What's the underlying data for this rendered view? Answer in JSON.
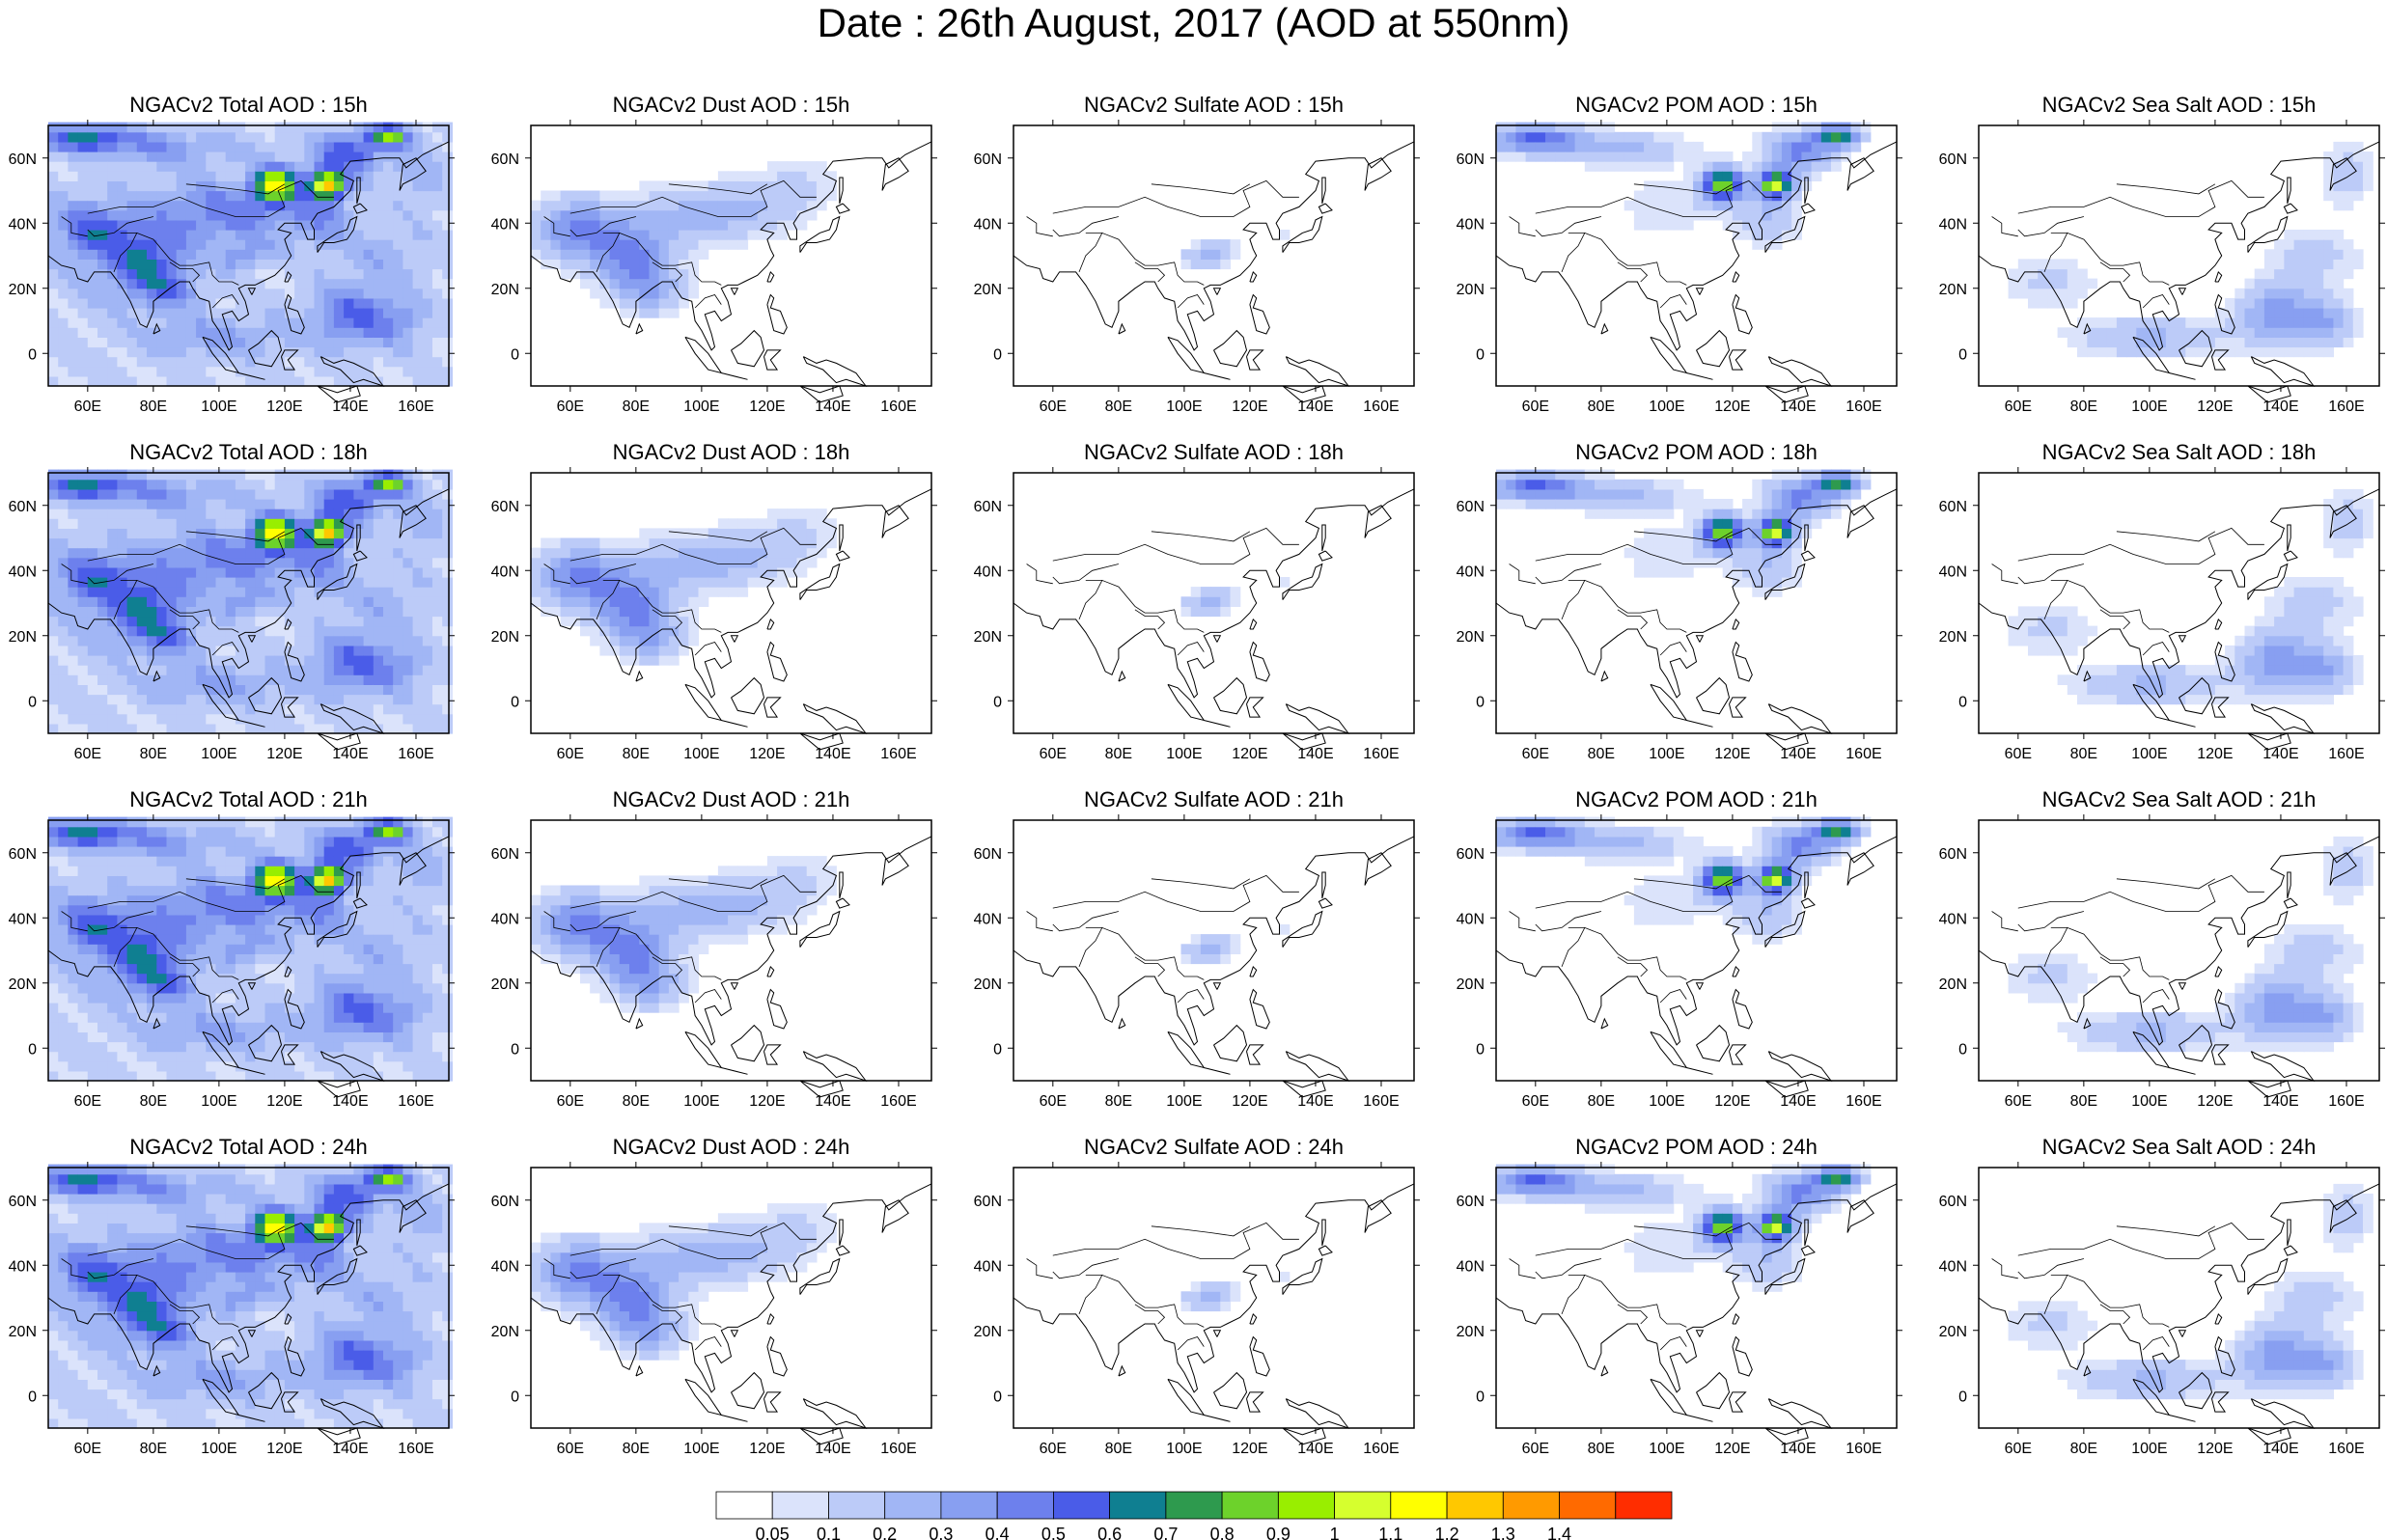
{
  "title": "Date : 26th August, 2017 (AOD at 550nm)",
  "map": {
    "lon_range": [
      48,
      170
    ],
    "lat_range": [
      -10,
      70
    ],
    "lon_ticks": [
      "60E",
      "80E",
      "100E",
      "120E",
      "140E",
      "160E"
    ],
    "lat_ticks": [
      "60N",
      "40N",
      "20N",
      "0"
    ],
    "lon_tick_values": [
      60,
      80,
      100,
      120,
      140,
      160
    ],
    "lat_tick_values": [
      60,
      40,
      20,
      0
    ]
  },
  "panels": [
    [
      {
        "title": "NGACv2 Total AOD : 15h",
        "variable": "total"
      },
      {
        "title": "NGACv2 Dust AOD : 15h",
        "variable": "dust"
      },
      {
        "title": "NGACv2 Sulfate AOD : 15h",
        "variable": "sulfate"
      },
      {
        "title": "NGACv2 POM AOD : 15h",
        "variable": "pom"
      },
      {
        "title": "NGACv2 Sea Salt AOD : 15h",
        "variable": "seasalt"
      }
    ],
    [
      {
        "title": "NGACv2 Total AOD : 18h",
        "variable": "total"
      },
      {
        "title": "NGACv2 Dust AOD : 18h",
        "variable": "dust"
      },
      {
        "title": "NGACv2 Sulfate AOD : 18h",
        "variable": "sulfate"
      },
      {
        "title": "NGACv2 POM AOD : 18h",
        "variable": "pom"
      },
      {
        "title": "NGACv2 Sea Salt AOD : 18h",
        "variable": "seasalt"
      }
    ],
    [
      {
        "title": "NGACv2 Total AOD : 21h",
        "variable": "total"
      },
      {
        "title": "NGACv2 Dust AOD : 21h",
        "variable": "dust"
      },
      {
        "title": "NGACv2 Sulfate AOD : 21h",
        "variable": "sulfate"
      },
      {
        "title": "NGACv2 POM AOD : 21h",
        "variable": "pom"
      },
      {
        "title": "NGACv2 Sea Salt AOD : 21h",
        "variable": "seasalt"
      }
    ],
    [
      {
        "title": "NGACv2 Total AOD : 24h",
        "variable": "total"
      },
      {
        "title": "NGACv2 Dust AOD : 24h",
        "variable": "dust"
      },
      {
        "title": "NGACv2 Sulfate AOD : 24h",
        "variable": "sulfate"
      },
      {
        "title": "NGACv2 POM AOD : 24h",
        "variable": "pom"
      },
      {
        "title": "NGACv2 Sea Salt  AOD : 24h",
        "variable": "seasalt"
      }
    ]
  ],
  "colorbar": {
    "labels": [
      "0.05",
      "0.1",
      "0.2",
      "0.3",
      "0.4",
      "0.5",
      "0.6",
      "0.7",
      "0.8",
      "0.9",
      "1",
      "1.1",
      "1.2",
      "1.3",
      "1.4"
    ],
    "colors": [
      "#ffffff",
      "#dbe3fb",
      "#bccbf8",
      "#a1b6f5",
      "#889ff1",
      "#6d80ed",
      "#4a5ce8",
      "#0f7f91",
      "#2e9a4e",
      "#6dd22b",
      "#99ee00",
      "#d6ff2e",
      "#ffff00",
      "#ffc800",
      "#ff9a00",
      "#ff6a00",
      "#ff2d00"
    ]
  }
}
